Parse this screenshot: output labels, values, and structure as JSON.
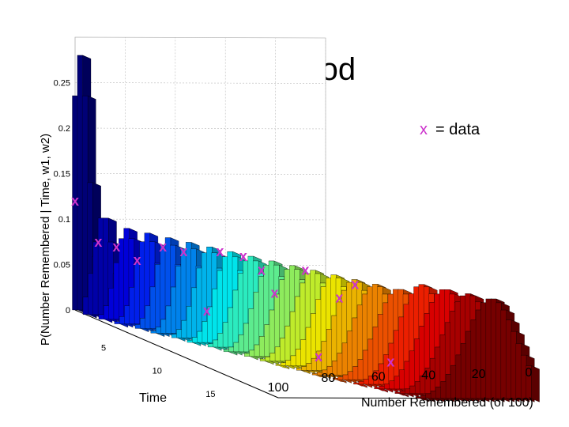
{
  "chart_data": {
    "type": "3d-bar",
    "title": "Likelihood",
    "zlabel": "P(Number Remembered | Time, w1, w2)",
    "xlabel": "Time",
    "ylabel": "Number Remembered (of 100)",
    "legend": {
      "marker": "x",
      "text": "= data",
      "placement": "top-right"
    },
    "z_ticks": [
      "0",
      "0.05",
      "0.1",
      "0.15",
      "0.2",
      "0.25"
    ],
    "z_tick_values": [
      0,
      0.05,
      0.1,
      0.15,
      0.2,
      0.25
    ],
    "z_range": [
      0,
      0.3
    ],
    "time_ticks": [
      "5",
      "10",
      "15"
    ],
    "time_tick_values": [
      5,
      10,
      15
    ],
    "time_range": [
      1,
      20
    ],
    "number_ticks": [
      "100",
      "80",
      "60",
      "40",
      "20",
      "0"
    ],
    "number_tick_values": [
      100,
      80,
      60,
      40,
      20,
      0
    ],
    "number_range": [
      0,
      100
    ],
    "grid": true,
    "colormap": "jet",
    "series": [
      {
        "time": 1,
        "peak": 0.28,
        "mode": 98
      },
      {
        "time": 2,
        "peak": 0.11,
        "mode": 93
      },
      {
        "time": 3,
        "peak": 0.1,
        "mode": 88
      },
      {
        "time": 4,
        "peak": 0.1,
        "mode": 84
      },
      {
        "time": 5,
        "peak": 0.1,
        "mode": 80
      },
      {
        "time": 6,
        "peak": 0.1,
        "mode": 76
      },
      {
        "time": 7,
        "peak": 0.1,
        "mode": 72
      },
      {
        "time": 8,
        "peak": 0.1,
        "mode": 68
      },
      {
        "time": 9,
        "peak": 0.1,
        "mode": 64
      },
      {
        "time": 10,
        "peak": 0.1,
        "mode": 60
      },
      {
        "time": 11,
        "peak": 0.1,
        "mode": 56
      },
      {
        "time": 12,
        "peak": 0.1,
        "mode": 52
      },
      {
        "time": 13,
        "peak": 0.1,
        "mode": 48
      },
      {
        "time": 14,
        "peak": 0.1,
        "mode": 44
      },
      {
        "time": 15,
        "peak": 0.1,
        "mode": 40
      },
      {
        "time": 16,
        "peak": 0.1,
        "mode": 35
      },
      {
        "time": 17,
        "peak": 0.11,
        "mode": 30
      },
      {
        "time": 18,
        "peak": 0.11,
        "mode": 25
      },
      {
        "time": 19,
        "peak": 0.11,
        "mode": 20
      },
      {
        "time": 20,
        "peak": 0.11,
        "mode": 15
      }
    ],
    "data_points": [
      {
        "time": 1,
        "number": 100,
        "p": 0.12
      },
      {
        "time": 2,
        "number": 95,
        "p": 0.08
      },
      {
        "time": 3,
        "number": 92,
        "p": 0.08
      },
      {
        "time": 4,
        "number": 88,
        "p": 0.07
      },
      {
        "time": 5,
        "number": 82,
        "p": 0.09
      },
      {
        "time": 6,
        "number": 78,
        "p": 0.09
      },
      {
        "time": 7,
        "number": 73,
        "p": 0.03
      },
      {
        "time": 8,
        "number": 72,
        "p": 0.1
      },
      {
        "time": 9,
        "number": 67,
        "p": 0.1
      },
      {
        "time": 10,
        "number": 64,
        "p": 0.09
      },
      {
        "time": 11,
        "number": 63,
        "p": 0.07
      },
      {
        "time": 12,
        "number": 55,
        "p": 0.1
      },
      {
        "time": 13,
        "number": 54,
        "p": 0.01
      },
      {
        "time": 14,
        "number": 50,
        "p": 0.08
      },
      {
        "time": 15,
        "number": 48,
        "p": 0.1
      },
      {
        "time": 16,
        "number": 38,
        "p": 0.02
      }
    ],
    "colors": {
      "marker": "#cc33cc",
      "axis": "#000000",
      "grid": "#bbbbbb",
      "background": "#ffffff"
    }
  }
}
